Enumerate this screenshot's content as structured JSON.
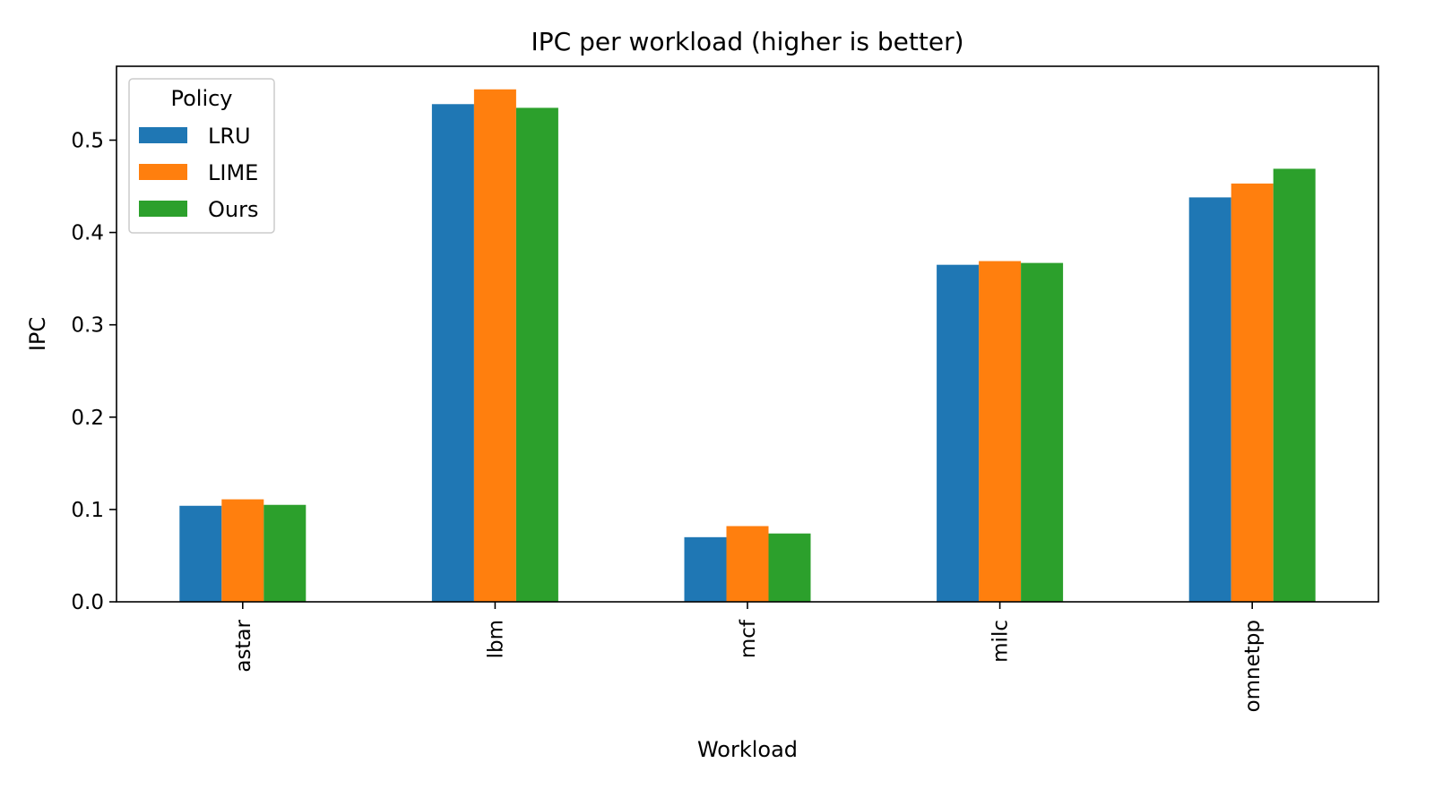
{
  "chart_data": {
    "type": "bar",
    "title": "IPC per workload (higher is better)",
    "xlabel": "Workload",
    "ylabel": "IPC",
    "categories": [
      "astar",
      "lbm",
      "mcf",
      "milc",
      "omnetpp"
    ],
    "series": [
      {
        "name": "LRU",
        "color": "#1f77b4",
        "values": [
          0.104,
          0.539,
          0.07,
          0.365,
          0.438
        ]
      },
      {
        "name": "LIME",
        "color": "#ff7f0e",
        "values": [
          0.111,
          0.555,
          0.082,
          0.369,
          0.453
        ]
      },
      {
        "name": "Ours",
        "color": "#2ca02c",
        "values": [
          0.105,
          0.535,
          0.074,
          0.367,
          0.469
        ]
      }
    ],
    "ylim": [
      0,
      0.58
    ],
    "yticks": [
      0.0,
      0.1,
      0.2,
      0.3,
      0.4,
      0.5
    ],
    "ytick_labels": [
      "0.0",
      "0.1",
      "0.2",
      "0.3",
      "0.4",
      "0.5"
    ],
    "grid": false,
    "legend": {
      "title": "Policy",
      "position": "top-left"
    }
  }
}
